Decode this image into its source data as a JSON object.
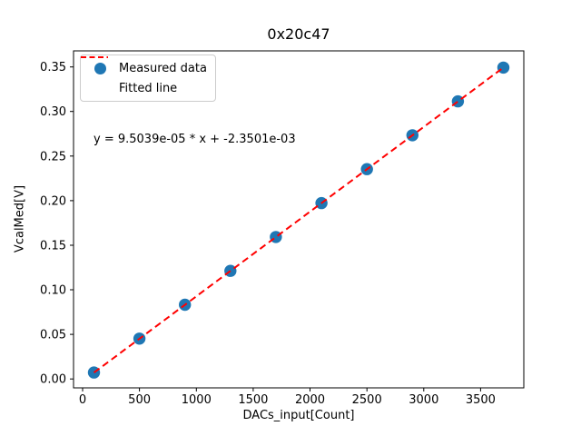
{
  "figure": {
    "kind": "matplotlib-figure"
  },
  "chart_data": {
    "type": "scatter",
    "title": "0x20c47",
    "xlabel": "DACs_input[Count]",
    "ylabel": "VcalMed[V]",
    "annotation": "y = 9.5039e-05 * x + -2.3501e-03",
    "x": [
      100,
      500,
      900,
      1300,
      1700,
      2100,
      2500,
      2900,
      3300,
      3700
    ],
    "series": [
      {
        "name": "Measured data",
        "type": "scatter",
        "marker": "circle",
        "color": "#1f77b4",
        "values": [
          0.0072,
          0.0452,
          0.0832,
          0.1212,
          0.1592,
          0.1972,
          0.2353,
          0.2733,
          0.3113,
          0.3493
        ]
      },
      {
        "name": "Fitted line",
        "type": "line",
        "linestyle": "dashed",
        "color": "#ff0000",
        "slope": 9.5039e-05,
        "intercept": -0.0023501
      }
    ],
    "xlim": [
      -80,
      3880
    ],
    "ylim": [
      -0.01,
      0.368
    ],
    "xticks": [
      0,
      500,
      1000,
      1500,
      2000,
      2500,
      3000,
      3500
    ],
    "yticks": [
      0.0,
      0.05,
      0.1,
      0.15,
      0.2,
      0.25,
      0.3,
      0.35
    ],
    "grid": false,
    "legend_position": "upper left",
    "frame_color": "#000000",
    "background": "#ffffff"
  }
}
